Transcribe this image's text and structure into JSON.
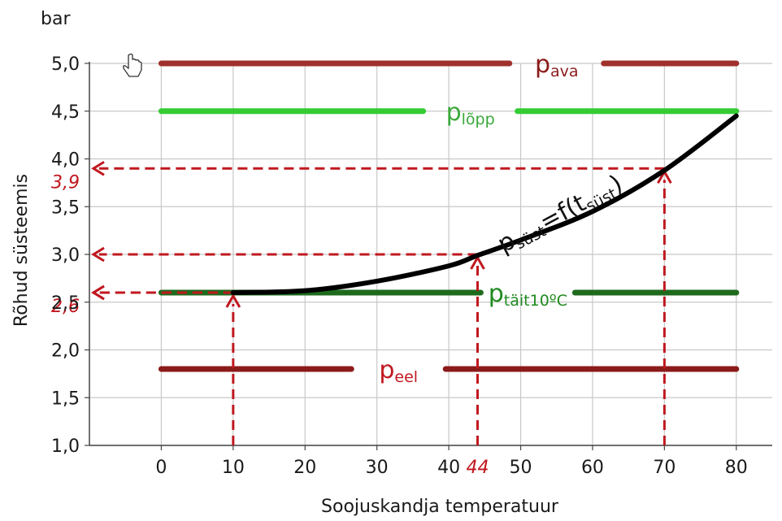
{
  "chart_data": {
    "type": "line",
    "unit_label": "bar",
    "xlabel": "Soojuskandja temperatuur",
    "ylabel": "Rõhud süsteemis",
    "xlim": [
      -10,
      85
    ],
    "ylim": [
      1.0,
      5.0
    ],
    "x_ticks": [
      "0",
      "10",
      "20",
      "30",
      "40",
      "50",
      "60",
      "70",
      "80"
    ],
    "y_ticks": [
      "1,0",
      "1,5",
      "2,0",
      "2,5",
      "3,0",
      "3,5",
      "4,0",
      "4,5",
      "5,0"
    ],
    "grid": true,
    "series": [
      {
        "name": "p",
        "sub": "ava",
        "value": 5.0,
        "x": [
          0,
          80
        ],
        "color": "#a0302c",
        "label_color": "#8b1a1a",
        "label_x": 55
      },
      {
        "name": "p",
        "sub": "lõpp",
        "value": 4.5,
        "x": [
          0,
          80
        ],
        "color": "#33cc33",
        "label_color": "#3aa83a",
        "label_x": 43
      },
      {
        "name": "p",
        "sub": "täit10ºC",
        "value": 2.6,
        "x": [
          0,
          80
        ],
        "color": "#1e6b1e",
        "label_color": "#1f8a1f",
        "label_x": 51
      },
      {
        "name": "p",
        "sub": "eel",
        "value": 1.8,
        "x": [
          0,
          80
        ],
        "color": "#8b1a1a",
        "label_color": "#c0181f",
        "label_x": 33
      },
      {
        "name": "p",
        "sub": "süst",
        "suffix": "=f(t",
        "suffix_sub": "süst",
        "suffix_end": ")",
        "x": [
          10,
          20,
          30,
          40,
          44,
          50,
          60,
          70,
          80
        ],
        "y": [
          2.6,
          2.62,
          2.72,
          2.88,
          2.99,
          3.15,
          3.45,
          3.88,
          4.45
        ],
        "color": "#000000"
      }
    ],
    "annotations": [
      {
        "x": 10,
        "y": 2.6,
        "label_y": "2,6"
      },
      {
        "x": 44,
        "y": 3.0,
        "label_x": "44"
      },
      {
        "x": 70,
        "y": 3.9,
        "label_y": "3,9"
      }
    ]
  }
}
